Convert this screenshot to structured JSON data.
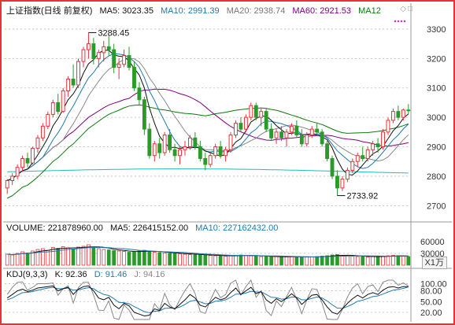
{
  "price_panel": {
    "title": "上证指数(日线 前复权)",
    "ma5_label": "MA5: 3023.35",
    "ma10_label": "MA10: 2991.39",
    "ma20_label": "MA20: 2938.74",
    "ma60_label": "MA60: 2921.53",
    "ma120_label": "MA12",
    "high_annotation": "3288.45",
    "low_annotation": "2733.92",
    "y_ticks": [
      "3300",
      "3200",
      "3100",
      "3000",
      "2900",
      "2800",
      "2700"
    ],
    "colors": {
      "ma5": "#111111",
      "ma10": "#1f7ab0",
      "ma20": "#888888",
      "ma60": "#800080",
      "ma120": "#0a7a0a",
      "ma250": "#22bbbb",
      "up": "#e8323a",
      "down": "#2a9a2a"
    }
  },
  "volume_panel": {
    "title": "VOLUME: 221878960.00",
    "ma5_label": "MA5: 226415152.00",
    "ma10_label": "MA10: 227162432.00",
    "y_ticks": [
      "60000",
      "30000"
    ],
    "unit_button": "X1万"
  },
  "kdj_panel": {
    "title": "KDJ(9,3,3)",
    "k_label": "K: 92.36",
    "d_label": "D: 91.46",
    "j_label": "J: 94.16",
    "y_ticks": [
      "100.00",
      "80.00",
      "50.00",
      "20.00"
    ]
  },
  "icons": [
    "diamond-icon",
    "square-icon",
    "dots-icon"
  ],
  "chart_data": {
    "type": "candlestick",
    "title": "上证指数(日线 前复权)",
    "ylim": [
      2650,
      3340
    ],
    "candles": [
      [
        2760,
        2790,
        2740,
        2785
      ],
      [
        2785,
        2810,
        2770,
        2800
      ],
      [
        2800,
        2840,
        2790,
        2830
      ],
      [
        2830,
        2870,
        2815,
        2860
      ],
      [
        2860,
        2880,
        2830,
        2845
      ],
      [
        2845,
        2900,
        2840,
        2895
      ],
      [
        2895,
        2940,
        2880,
        2930
      ],
      [
        2930,
        2980,
        2920,
        2970
      ],
      [
        2970,
        3020,
        2960,
        3010
      ],
      [
        3010,
        3060,
        3000,
        3050
      ],
      [
        3050,
        3080,
        3010,
        3020
      ],
      [
        3020,
        3100,
        3015,
        3090
      ],
      [
        3090,
        3140,
        3070,
        3130
      ],
      [
        3130,
        3180,
        3100,
        3110
      ],
      [
        3110,
        3200,
        3100,
        3190
      ],
      [
        3190,
        3240,
        3170,
        3230
      ],
      [
        3230,
        3288,
        3200,
        3250
      ],
      [
        3250,
        3270,
        3180,
        3200
      ],
      [
        3200,
        3230,
        3170,
        3220
      ],
      [
        3220,
        3260,
        3190,
        3240
      ],
      [
        3240,
        3280,
        3210,
        3230
      ],
      [
        3230,
        3250,
        3150,
        3170
      ],
      [
        3170,
        3200,
        3130,
        3180
      ],
      [
        3180,
        3230,
        3170,
        3210
      ],
      [
        3210,
        3240,
        3160,
        3170
      ],
      [
        3170,
        3190,
        3090,
        3100
      ],
      [
        3100,
        3120,
        3040,
        3060
      ],
      [
        3060,
        3070,
        2940,
        2960
      ],
      [
        2960,
        2980,
        2860,
        2870
      ],
      [
        2870,
        2920,
        2850,
        2910
      ],
      [
        2910,
        2930,
        2860,
        2880
      ],
      [
        2880,
        2950,
        2870,
        2940
      ],
      [
        2940,
        2960,
        2880,
        2890
      ],
      [
        2890,
        2910,
        2850,
        2870
      ],
      [
        2870,
        2900,
        2840,
        2890
      ],
      [
        2890,
        2920,
        2870,
        2900
      ],
      [
        2900,
        2940,
        2890,
        2930
      ],
      [
        2930,
        2950,
        2890,
        2900
      ],
      [
        2900,
        2920,
        2850,
        2860
      ],
      [
        2860,
        2880,
        2820,
        2840
      ],
      [
        2840,
        2880,
        2830,
        2870
      ],
      [
        2870,
        2910,
        2860,
        2900
      ],
      [
        2900,
        2920,
        2860,
        2870
      ],
      [
        2870,
        2900,
        2850,
        2890
      ],
      [
        2890,
        2950,
        2880,
        2940
      ],
      [
        2940,
        2990,
        2930,
        2980
      ],
      [
        2980,
        3000,
        2950,
        2960
      ],
      [
        2960,
        3010,
        2950,
        3000
      ],
      [
        3000,
        3050,
        2990,
        3040
      ],
      [
        3040,
        3050,
        2990,
        3000
      ],
      [
        3000,
        3030,
        2970,
        3020
      ],
      [
        3020,
        3030,
        2950,
        2960
      ],
      [
        2960,
        2980,
        2920,
        2930
      ],
      [
        2930,
        2960,
        2910,
        2950
      ],
      [
        2950,
        2970,
        2920,
        2930
      ],
      [
        2930,
        2960,
        2900,
        2950
      ],
      [
        2950,
        2980,
        2940,
        2970
      ],
      [
        2970,
        2990,
        2930,
        2940
      ],
      [
        2940,
        2960,
        2900,
        2910
      ],
      [
        2910,
        2950,
        2900,
        2940
      ],
      [
        2940,
        2970,
        2930,
        2960
      ],
      [
        2960,
        2980,
        2940,
        2950
      ],
      [
        2950,
        2960,
        2900,
        2910
      ],
      [
        2910,
        2920,
        2850,
        2860
      ],
      [
        2860,
        2870,
        2790,
        2800
      ],
      [
        2800,
        2820,
        2734,
        2760
      ],
      [
        2760,
        2800,
        2750,
        2790
      ],
      [
        2790,
        2830,
        2780,
        2820
      ],
      [
        2820,
        2860,
        2810,
        2850
      ],
      [
        2850,
        2880,
        2830,
        2870
      ],
      [
        2870,
        2900,
        2850,
        2860
      ],
      [
        2860,
        2900,
        2850,
        2890
      ],
      [
        2890,
        2920,
        2870,
        2910
      ],
      [
        2910,
        2930,
        2880,
        2900
      ],
      [
        2900,
        2960,
        2890,
        2950
      ],
      [
        2950,
        3000,
        2940,
        2990
      ],
      [
        2990,
        3030,
        2980,
        3020
      ],
      [
        3020,
        3040,
        2990,
        3000
      ],
      [
        3000,
        3030,
        2990,
        3025
      ],
      [
        3025,
        3045,
        3010,
        3023
      ]
    ],
    "volume_ylim": [
      0,
      80000
    ],
    "volumes": [
      28000,
      26000,
      30000,
      34000,
      31000,
      36000,
      40000,
      42000,
      38000,
      45000,
      43000,
      47000,
      44000,
      41000,
      46000,
      48000,
      52000,
      45000,
      42000,
      40000,
      39000,
      37000,
      36000,
      35000,
      33000,
      34000,
      36000,
      38000,
      35000,
      33000,
      32000,
      31000,
      30000,
      30000,
      29000,
      28000,
      27000,
      27000,
      26000,
      25000,
      25000,
      24000,
      24000,
      23000,
      24000,
      25000,
      26000,
      25000,
      24000,
      23000,
      22000,
      22000,
      21000,
      22000,
      22000,
      21000,
      22000,
      21000,
      20000,
      21000,
      21000,
      22000,
      23000,
      24000,
      26000,
      27000,
      25000,
      24000,
      23000,
      22000,
      22000,
      21000,
      22000,
      22000,
      23000,
      24000,
      25000,
      24000,
      23000,
      22000
    ],
    "kdj": {
      "ylim": [
        0,
        110
      ],
      "k": [
        60,
        70,
        80,
        85,
        78,
        82,
        88,
        90,
        92,
        94,
        80,
        86,
        90,
        70,
        85,
        92,
        94,
        80,
        60,
        55,
        62,
        40,
        30,
        45,
        38,
        20,
        15,
        10,
        12,
        30,
        25,
        45,
        35,
        30,
        42,
        55,
        70,
        60,
        40,
        35,
        48,
        62,
        55,
        60,
        75,
        88,
        70,
        80,
        90,
        72,
        78,
        55,
        45,
        58,
        50,
        60,
        72,
        60,
        42,
        55,
        68,
        70,
        55,
        35,
        20,
        15,
        30,
        45,
        58,
        68,
        60,
        70,
        75,
        70,
        82,
        90,
        92,
        88,
        92,
        92
      ],
      "d": [
        55,
        60,
        68,
        75,
        76,
        78,
        82,
        85,
        88,
        90,
        86,
        86,
        88,
        82,
        83,
        86,
        89,
        86,
        77,
        70,
        67,
        58,
        48,
        47,
        44,
        36,
        29,
        22,
        19,
        23,
        24,
        31,
        32,
        31,
        35,
        42,
        51,
        54,
        49,
        44,
        45,
        51,
        52,
        55,
        62,
        71,
        71,
        74,
        79,
        77,
        77,
        70,
        62,
        61,
        57,
        58,
        63,
        62,
        55,
        55,
        59,
        63,
        60,
        52,
        41,
        32,
        31,
        36,
        43,
        51,
        54,
        59,
        64,
        66,
        71,
        77,
        82,
        84,
        87,
        91
      ],
      "j": [
        70,
        90,
        104,
        105,
        82,
        90,
        100,
        100,
        100,
        102,
        68,
        86,
        94,
        46,
        89,
        104,
        104,
        68,
        26,
        25,
        52,
        4,
        0,
        41,
        26,
        0,
        0,
        0,
        0,
        44,
        27,
        73,
        41,
        28,
        56,
        81,
        100,
        72,
        22,
        17,
        54,
        84,
        61,
        70,
        101,
        110,
        68,
        92,
        110,
        62,
        80,
        25,
        11,
        52,
        36,
        64,
        90,
        56,
        16,
        55,
        86,
        84,
        45,
        1,
        0,
        0,
        28,
        63,
        88,
        100,
        72,
        92,
        97,
        78,
        104,
        110,
        110,
        96,
        102,
        94
      ]
    }
  }
}
